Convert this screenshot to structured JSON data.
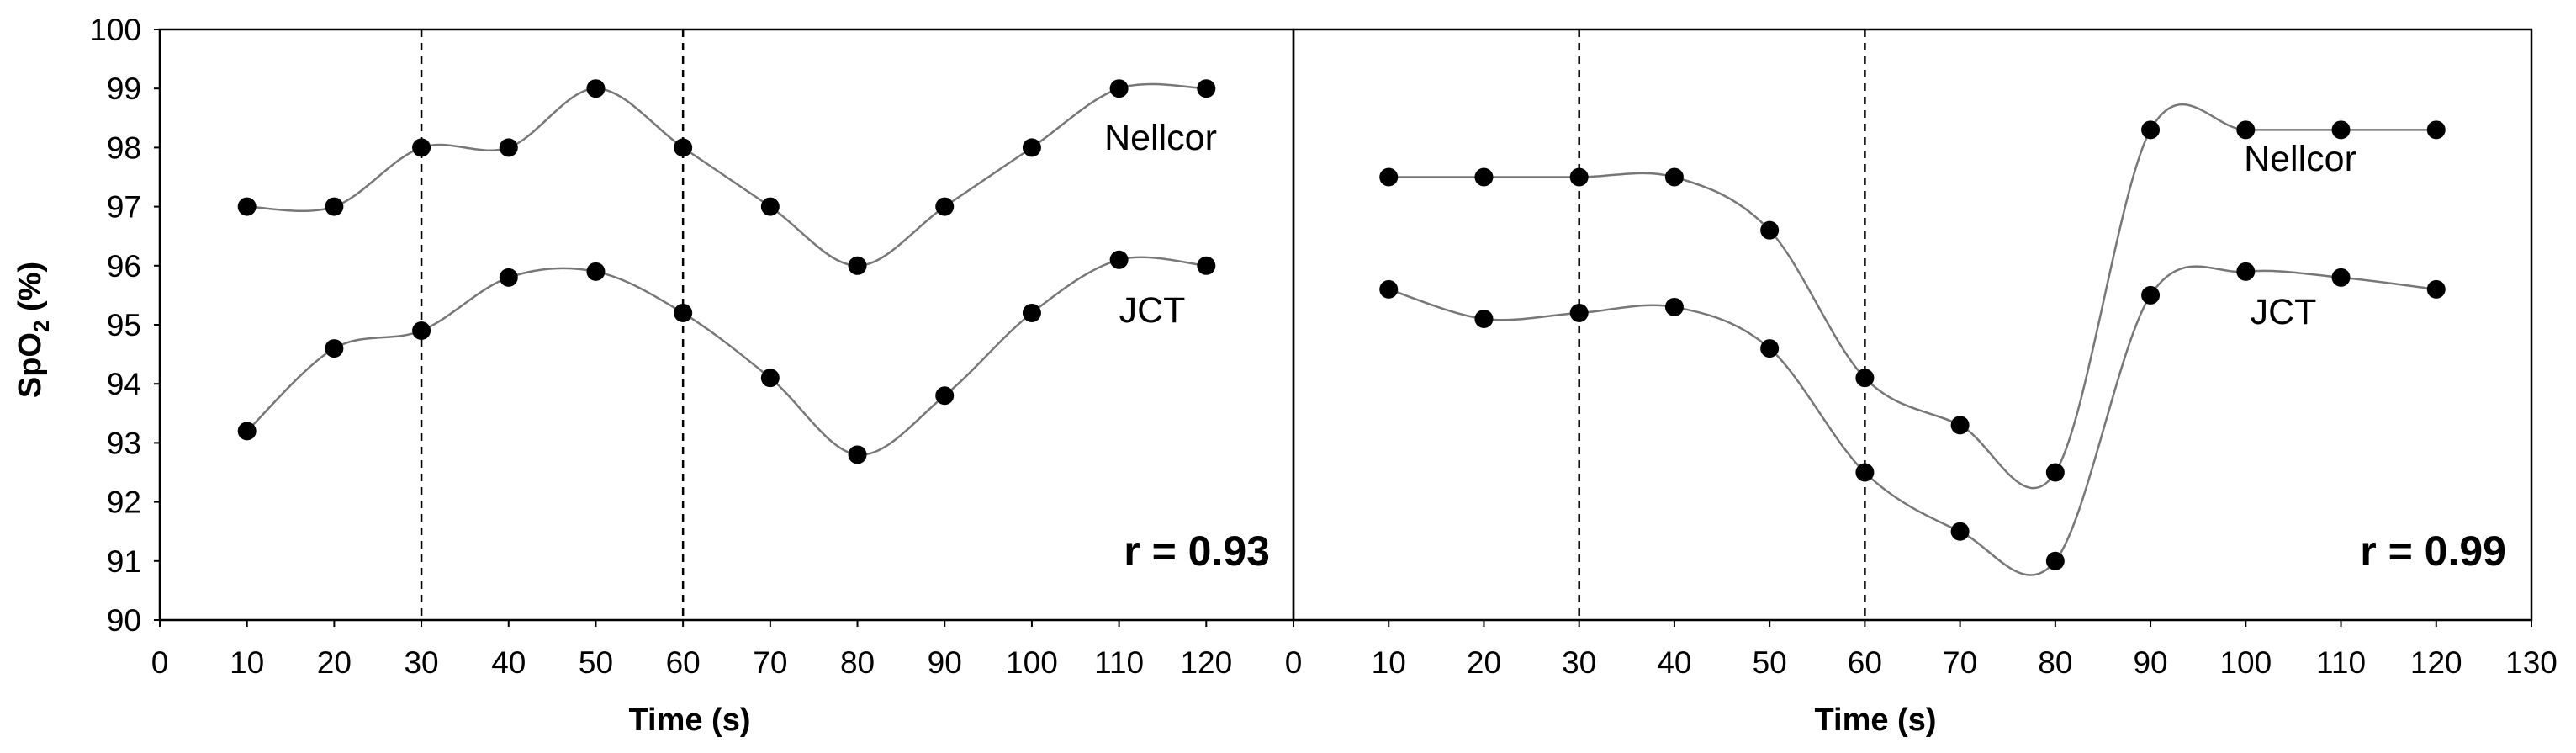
{
  "colors": {
    "line": "#777777",
    "marker": "#000000",
    "axis": "#000000",
    "guide": "#000000",
    "background": "#ffffff"
  },
  "shared": {
    "ylabel_main": "SpO",
    "ylabel_sub": "2",
    "ylabel_suffix": " (%)",
    "y_ticks": [
      "90",
      "91",
      "92",
      "93",
      "94",
      "95",
      "96",
      "97",
      "98",
      "99",
      "100"
    ]
  },
  "chart_data": [
    {
      "type": "line",
      "xlabel": "Time (s)",
      "ylabel": "SpO2 (%)",
      "xlim": [
        0,
        130
      ],
      "ylim": [
        90,
        100
      ],
      "x_ticks": [
        "0",
        "10",
        "20",
        "30",
        "40",
        "50",
        "60",
        "70",
        "80",
        "90",
        "100",
        "110",
        "120"
      ],
      "grid": false,
      "vertical_lines": [
        30,
        60
      ],
      "x": [
        10,
        20,
        30,
        40,
        50,
        60,
        70,
        80,
        90,
        100,
        110,
        120
      ],
      "series": [
        {
          "name": "Nellcor",
          "values": [
            97,
            97,
            98,
            98,
            99,
            98,
            97,
            96,
            97,
            98,
            99,
            99
          ]
        },
        {
          "name": "JCT",
          "values": [
            93.2,
            94.6,
            94.9,
            95.8,
            95.9,
            95.2,
            94.1,
            92.8,
            93.8,
            95.2,
            96.1,
            96.0
          ]
        }
      ],
      "annotation": "r = 0.93"
    },
    {
      "type": "line",
      "xlabel": "Time (s)",
      "ylabel": "SpO2 (%)",
      "xlim": [
        0,
        130
      ],
      "ylim": [
        90,
        100
      ],
      "x_ticks": [
        "0",
        "10",
        "20",
        "30",
        "40",
        "50",
        "60",
        "70",
        "80",
        "90",
        "100",
        "110",
        "120",
        "130"
      ],
      "grid": false,
      "vertical_lines": [
        30,
        60
      ],
      "x": [
        10,
        20,
        30,
        40,
        50,
        60,
        70,
        80,
        90,
        100,
        110,
        120
      ],
      "series": [
        {
          "name": "Nellcor",
          "values": [
            97.5,
            97.5,
            97.5,
            97.5,
            96.6,
            94.1,
            93.3,
            92.5,
            98.3,
            98.3,
            98.3,
            98.3
          ]
        },
        {
          "name": "JCT",
          "values": [
            95.6,
            95.1,
            95.2,
            95.3,
            94.6,
            92.5,
            91.5,
            91.0,
            95.5,
            95.9,
            95.8,
            95.6
          ]
        }
      ],
      "annotation": "r = 0.99"
    }
  ]
}
